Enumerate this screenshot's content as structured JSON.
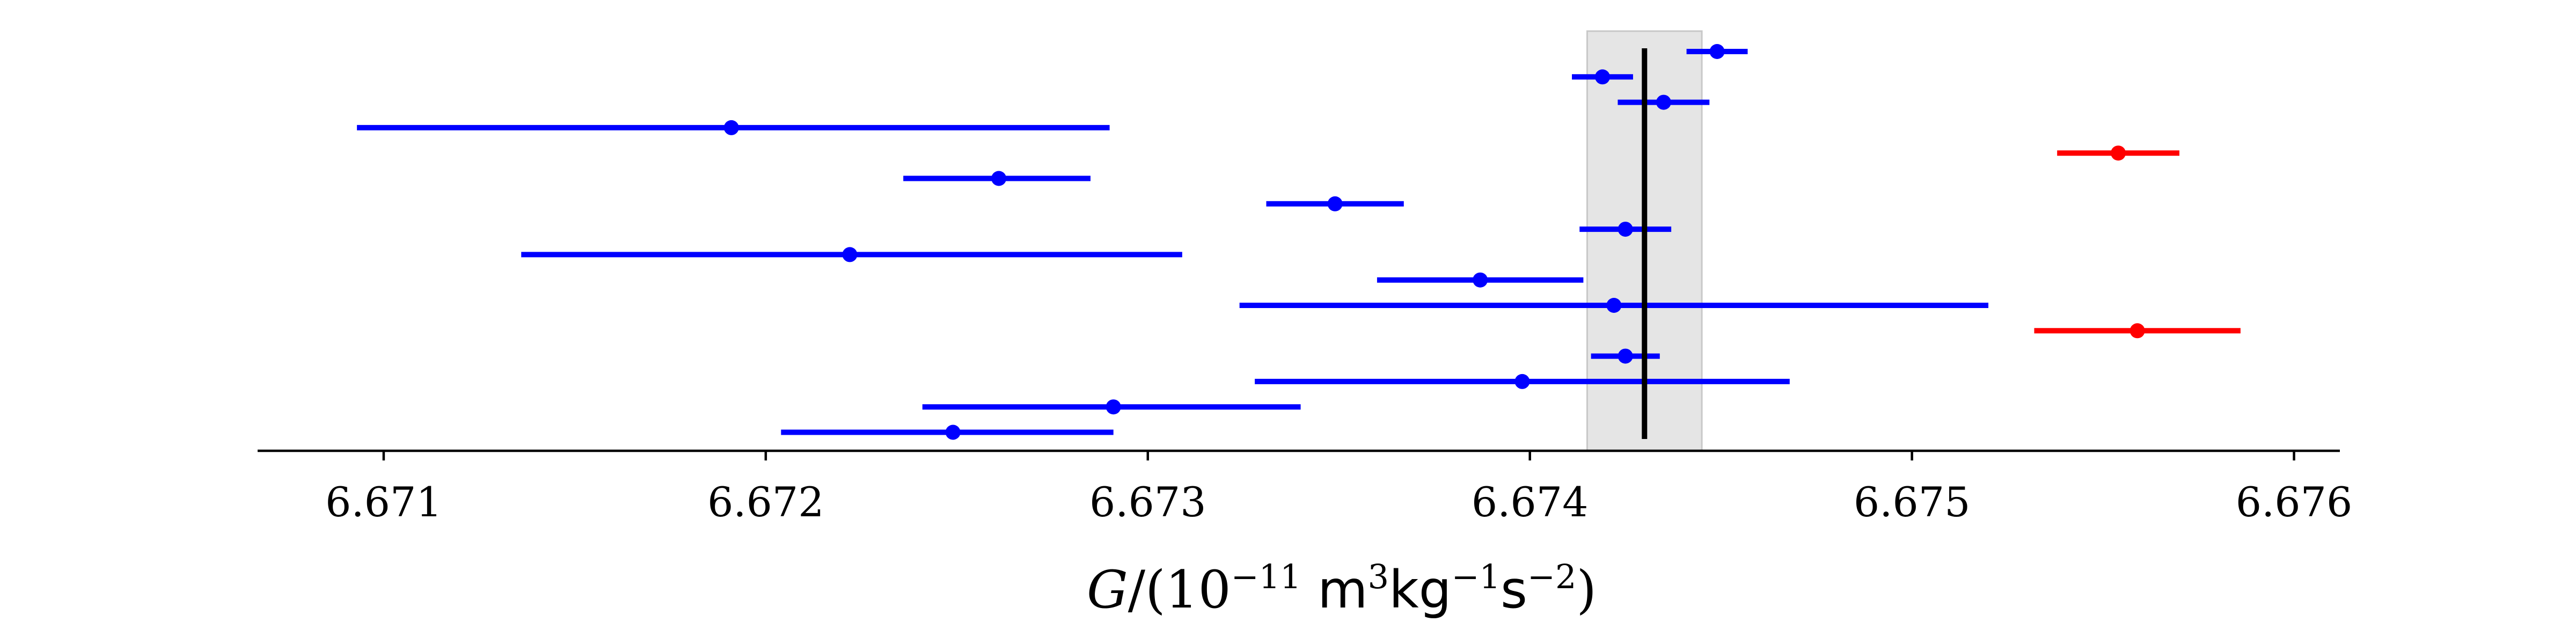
{
  "chart_data": {
    "type": "scatter",
    "title": "",
    "xlabel": {
      "symbol": "G",
      "rest": "/(10",
      "exp1": "−11",
      "unit_m": " m",
      "exp_m": "3",
      "unit_kg": "kg",
      "exp_kg": "−1",
      "unit_s": "s",
      "exp_s": "−2",
      "close": ")"
    },
    "ylabel": "",
    "xlim": [
      6.67067,
      6.67612
    ],
    "x_ticks": [
      6.671,
      6.672,
      6.673,
      6.674,
      6.675,
      6.676
    ],
    "x_tick_labels": [
      "6.671",
      "6.672",
      "6.673",
      "6.674",
      "6.675",
      "6.676"
    ],
    "grid": false,
    "legend": "none",
    "reference_value": 6.6743,
    "reference_band": [
      6.67415,
      6.67445
    ],
    "colors": {
      "normal": "#0000ff",
      "outlier": "#ff0000",
      "reference": "#000000",
      "band": "#e5e5e5"
    },
    "points": [
      {
        "value": 6.67449,
        "lower": 6.67441,
        "upper": 6.67457,
        "group": "normal"
      },
      {
        "value": 6.67419,
        "lower": 6.67411,
        "upper": 6.67427,
        "group": "normal"
      },
      {
        "value": 6.67435,
        "lower": 6.67423,
        "upper": 6.67447,
        "group": "normal"
      },
      {
        "value": 6.67191,
        "lower": 6.67093,
        "upper": 6.6729,
        "group": "normal"
      },
      {
        "value": 6.67554,
        "lower": 6.67538,
        "upper": 6.6757,
        "group": "outlier"
      },
      {
        "value": 6.67261,
        "lower": 6.67236,
        "upper": 6.67285,
        "group": "normal"
      },
      {
        "value": 6.67349,
        "lower": 6.67331,
        "upper": 6.67367,
        "group": "normal"
      },
      {
        "value": 6.67425,
        "lower": 6.67413,
        "upper": 6.67437,
        "group": "normal"
      },
      {
        "value": 6.67222,
        "lower": 6.67136,
        "upper": 6.67309,
        "group": "normal"
      },
      {
        "value": 6.67387,
        "lower": 6.6736,
        "upper": 6.67414,
        "group": "normal"
      },
      {
        "value": 6.67422,
        "lower": 6.67324,
        "upper": 6.6752,
        "group": "normal"
      },
      {
        "value": 6.67559,
        "lower": 6.67532,
        "upper": 6.67586,
        "group": "outlier"
      },
      {
        "value": 6.67425,
        "lower": 6.67416,
        "upper": 6.67434,
        "group": "normal"
      },
      {
        "value": 6.67398,
        "lower": 6.67328,
        "upper": 6.67468,
        "group": "normal"
      },
      {
        "value": 6.67291,
        "lower": 6.67241,
        "upper": 6.6734,
        "group": "normal"
      },
      {
        "value": 6.67249,
        "lower": 6.67204,
        "upper": 6.67291,
        "group": "normal"
      }
    ]
  }
}
